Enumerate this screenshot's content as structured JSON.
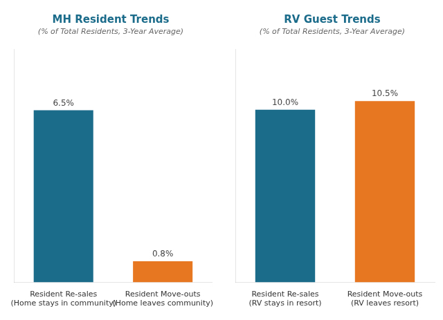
{
  "chart_data": [
    {
      "type": "bar",
      "title": "MH Resident Trends",
      "subtitle": "(% of Total Residents, 3-Year Average)",
      "categories": [
        "Resident Re-sales\n(Home stays in community)",
        "Resident Move-outs\n(Home leaves community)"
      ],
      "values": [
        6.5,
        0.8
      ],
      "value_labels": [
        "6.5%",
        "0.8%"
      ],
      "colors": [
        "#1B6B8A",
        "#E87722"
      ],
      "ylim": [
        0,
        8.8
      ],
      "grid": false,
      "legend": false,
      "data_labels": true,
      "tick_labels": "x"
    },
    {
      "type": "bar",
      "title": "RV Guest Trends",
      "subtitle": "(% of Total Residents, 3-Year Average)",
      "categories": [
        "Resident Re-sales\n(RV stays in resort)",
        "Resident Move-outs\n(RV leaves resort)"
      ],
      "values": [
        10.0,
        10.5
      ],
      "value_labels": [
        "10.0%",
        "10.5%"
      ],
      "colors": [
        "#1B6B8A",
        "#E87722"
      ],
      "ylim": [
        0,
        13.5
      ],
      "grid": false,
      "legend": false,
      "data_labels": true,
      "tick_labels": "x"
    }
  ]
}
